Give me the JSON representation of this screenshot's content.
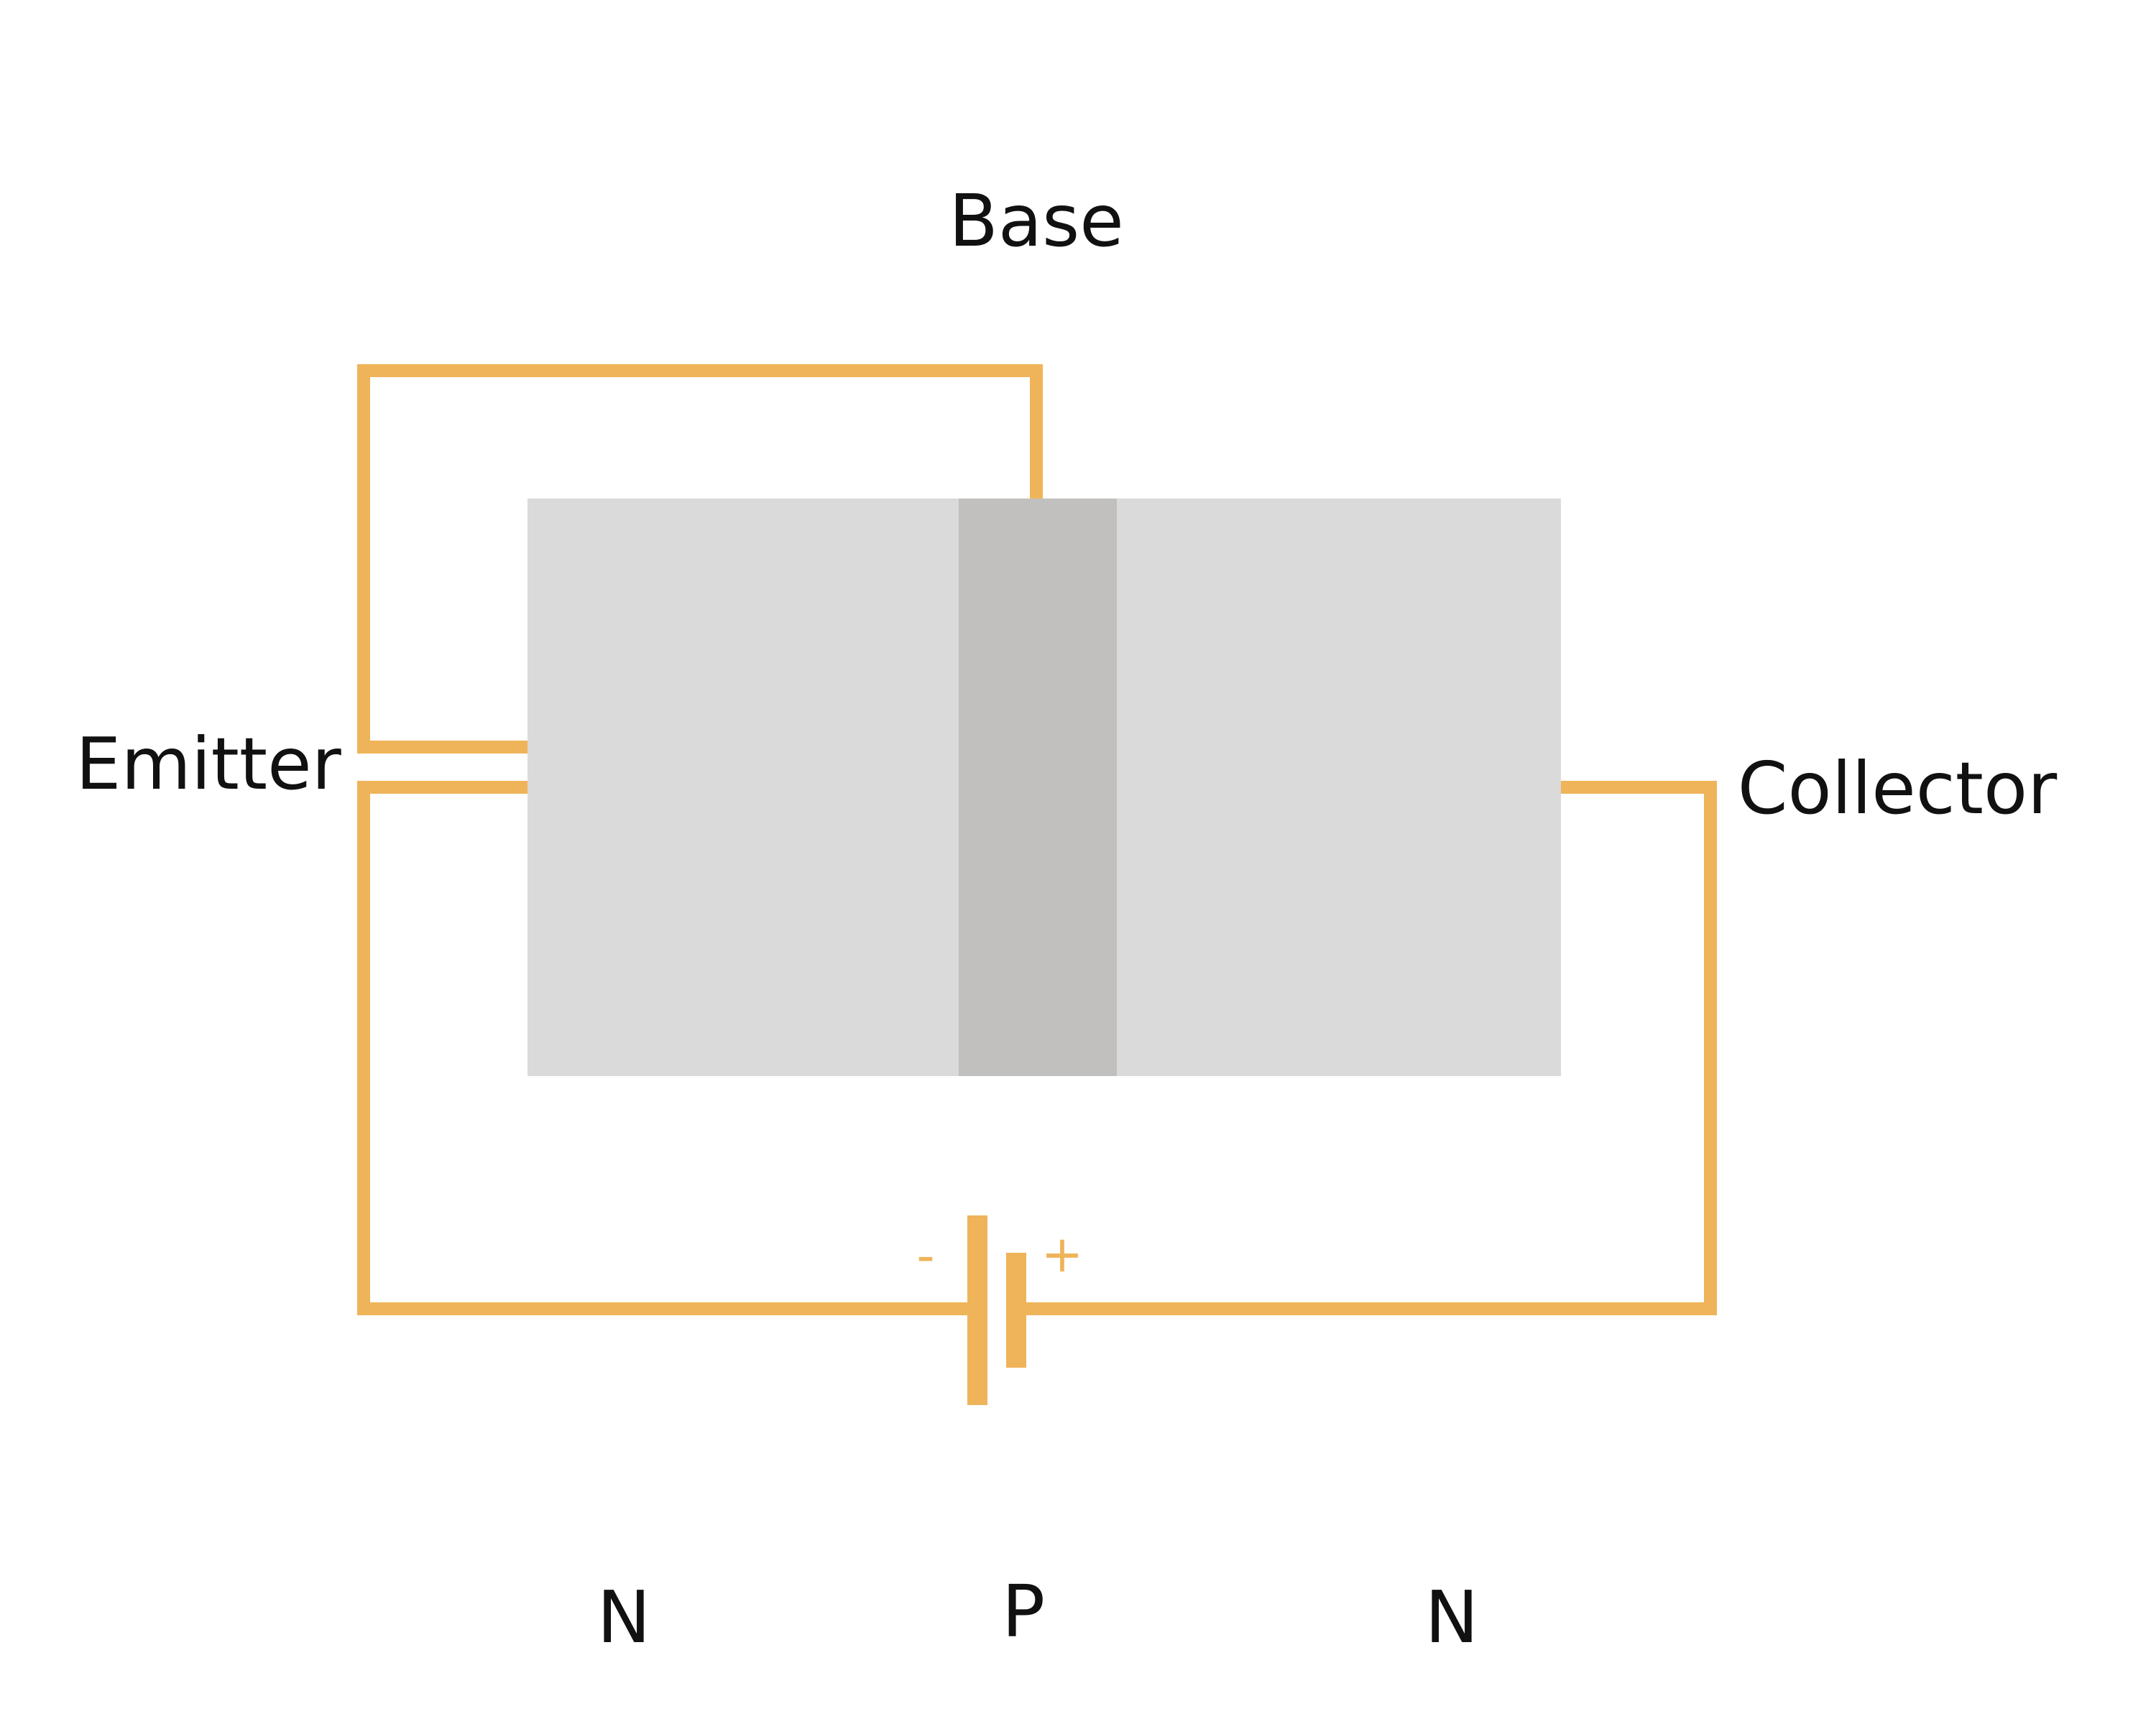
{
  "labels": {
    "base": "Base",
    "emitter": "Emitter",
    "collector": "Collector"
  },
  "regions": {
    "left": "N",
    "middle": "P",
    "right": "N"
  },
  "battery": {
    "negative": "-",
    "positive": "+"
  },
  "colors": {
    "wire": "#efb459",
    "n_region": "#d9dad9",
    "p_region": "#c1c0be",
    "text": "#111111"
  }
}
